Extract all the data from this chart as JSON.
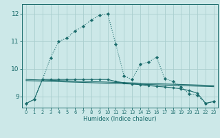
{
  "xlabel": "Humidex (Indice chaleur)",
  "xlim": [
    -0.5,
    23.5
  ],
  "ylim": [
    8.6,
    12.35
  ],
  "yticks": [
    9,
    10,
    11,
    12
  ],
  "xticks": [
    0,
    1,
    2,
    3,
    4,
    5,
    6,
    7,
    8,
    9,
    10,
    11,
    12,
    13,
    14,
    15,
    16,
    17,
    18,
    19,
    20,
    21,
    22,
    23
  ],
  "bg_color": "#cce8e8",
  "grid_color": "#aacece",
  "line_color": "#1a6b6b",
  "dotted_line": {
    "x": [
      0,
      1,
      2,
      3,
      4,
      5,
      6,
      7,
      8,
      9,
      10,
      11,
      12,
      13,
      14,
      15,
      16,
      17,
      18,
      19,
      20,
      21,
      22,
      23
    ],
    "y": [
      8.75,
      8.9,
      9.62,
      10.4,
      11.0,
      11.12,
      11.38,
      11.55,
      11.78,
      11.95,
      12.0,
      10.9,
      9.75,
      9.62,
      10.18,
      10.25,
      10.43,
      9.65,
      9.55,
      9.35,
      9.1,
      9.05,
      8.75,
      8.82
    ]
  },
  "solid_marker_line": {
    "x": [
      0,
      1,
      2,
      3,
      4,
      5,
      6,
      7,
      8,
      9,
      10,
      11,
      12,
      13,
      14,
      15,
      16,
      17,
      18,
      19,
      20,
      21,
      22,
      23
    ],
    "y": [
      8.75,
      8.9,
      9.62,
      9.62,
      9.62,
      9.62,
      9.62,
      9.62,
      9.62,
      9.62,
      9.62,
      9.55,
      9.5,
      9.46,
      9.43,
      9.4,
      9.37,
      9.35,
      9.32,
      9.28,
      9.22,
      9.12,
      8.76,
      8.82
    ]
  },
  "regression_line1": {
    "x": [
      0,
      23
    ],
    "y": [
      9.62,
      9.4
    ]
  },
  "regression_line2": {
    "x": [
      0,
      23
    ],
    "y": [
      9.58,
      9.36
    ]
  }
}
